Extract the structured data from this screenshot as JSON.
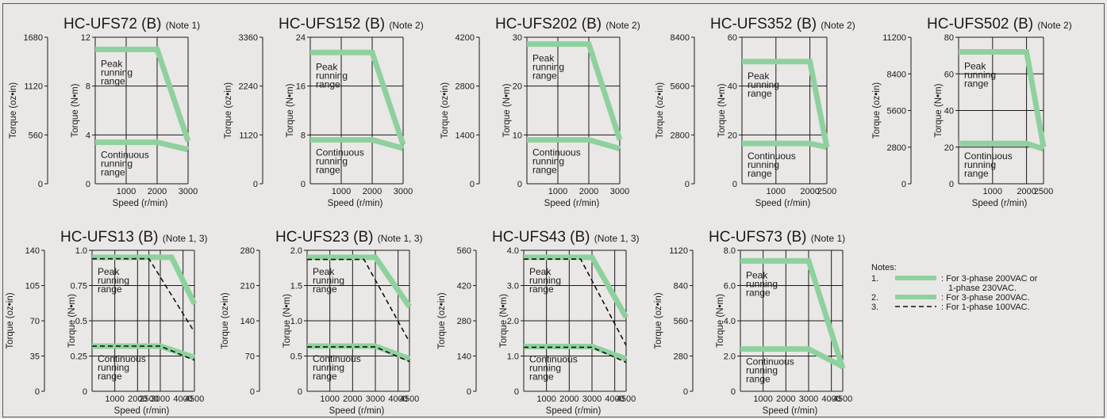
{
  "colors": {
    "band": "#8fd19e",
    "dash": "#111111",
    "grid": "#1a1a1a",
    "bg": "#eae8e6"
  },
  "chart_data": [
    {
      "type": "line",
      "title": "HC-UFS72 (B)",
      "note": "(Note 1)",
      "xlabel": "Speed (r/min)",
      "ylabel": "Torque (N•m)",
      "y2label": "Torque (oz•in)",
      "xlim": [
        0,
        3000
      ],
      "ylim": [
        0,
        12
      ],
      "xticks": [
        "1000",
        "2000",
        "3000"
      ],
      "yticks": [
        "0",
        "4",
        "8",
        "12"
      ],
      "y2ticks": [
        "0",
        "560",
        "1120",
        "1680"
      ],
      "peak_label": [
        "Peak",
        "running",
        "range"
      ],
      "cont_label": [
        "Continuous",
        "running",
        "range"
      ],
      "series": [
        {
          "style": "band",
          "x": [
            0,
            2000,
            3000
          ],
          "y": [
            11.0,
            11.0,
            3.5
          ]
        },
        {
          "style": "band",
          "x": [
            0,
            2000,
            3000
          ],
          "y": [
            3.4,
            3.4,
            2.8
          ]
        }
      ]
    },
    {
      "type": "line",
      "title": "HC-UFS152 (B)",
      "note": "(Note 2)",
      "xlabel": "",
      "ylabel": "Torque (N•m)",
      "y2label": "Torque (oz•in)",
      "xlim": [
        0,
        3000
      ],
      "ylim": [
        0,
        24
      ],
      "xticks": [
        "1000",
        "2000",
        "3000"
      ],
      "yticks": [
        "0",
        "8",
        "16",
        "24"
      ],
      "y2ticks": [
        "0",
        "1120",
        "2240",
        "3360"
      ],
      "peak_label": [
        "Peak",
        "running",
        "range"
      ],
      "cont_label": [
        "Continuous",
        "running",
        "range"
      ],
      "series": [
        {
          "style": "band",
          "x": [
            0,
            2000,
            3000
          ],
          "y": [
            21.5,
            21.5,
            6.4
          ]
        },
        {
          "style": "band",
          "x": [
            0,
            2000,
            3000
          ],
          "y": [
            7.2,
            7.2,
            5.8
          ]
        }
      ]
    },
    {
      "type": "line",
      "title": "HC-UFS202 (B)",
      "note": "(Note 2)",
      "xlabel": "",
      "ylabel": "Torque (N•m)",
      "y2label": "Torque (oz•in)",
      "xlim": [
        0,
        3000
      ],
      "ylim": [
        0,
        30
      ],
      "xticks": [
        "1000",
        "2000",
        "3000"
      ],
      "yticks": [
        "0",
        "10",
        "20",
        "30"
      ],
      "y2ticks": [
        "0",
        "1400",
        "2800",
        "4200"
      ],
      "peak_label": [
        "Peak",
        "running",
        "range"
      ],
      "cont_label": [
        "Continuous",
        "running",
        "range"
      ],
      "series": [
        {
          "style": "band",
          "x": [
            0,
            2000,
            3000
          ],
          "y": [
            28.6,
            28.6,
            9.0
          ]
        },
        {
          "style": "band",
          "x": [
            0,
            2000,
            3000
          ],
          "y": [
            9.0,
            9.0,
            7.2
          ]
        }
      ]
    },
    {
      "type": "line",
      "title": "HC-UFS352 (B)",
      "note": "(Note 2)",
      "xlabel": "",
      "ylabel": "Torque (N•m)",
      "y2label": "Torque (oz•in)",
      "xlim": [
        0,
        2500
      ],
      "ylim": [
        0,
        60
      ],
      "xticks": [
        "1000",
        "2000",
        "2500"
      ],
      "yticks": [
        "0",
        "20",
        "40",
        "60"
      ],
      "y2ticks": [
        "0",
        "2800",
        "5600",
        "8400"
      ],
      "peak_label": [
        "Peak",
        "running",
        "range"
      ],
      "cont_label": [
        "Continuous",
        "running",
        "range"
      ],
      "series": [
        {
          "style": "band",
          "x": [
            0,
            2000,
            2500
          ],
          "y": [
            50,
            50,
            15
          ]
        },
        {
          "style": "band",
          "x": [
            0,
            2000,
            2500
          ],
          "y": [
            16.5,
            16.5,
            15.0
          ]
        }
      ]
    },
    {
      "type": "line",
      "title": "HC-UFS502 (B)",
      "note": "(Note 2)",
      "xlabel": "",
      "ylabel": "Torque (N•m)",
      "y2label": "Torque (oz•in)",
      "xlim": [
        0,
        2500
      ],
      "ylim": [
        0,
        80
      ],
      "xticks": [
        "1000",
        "2000",
        "2500"
      ],
      "yticks": [
        "0",
        "20",
        "40",
        "60",
        "80"
      ],
      "y2ticks": [
        "0",
        "2800",
        "5600",
        "8400",
        "11200"
      ],
      "peak_label": [
        "Peak",
        "running",
        "range"
      ],
      "cont_label": [
        "Continuous",
        "running",
        "range"
      ],
      "series": [
        {
          "style": "band",
          "x": [
            0,
            2000,
            2500
          ],
          "y": [
            72,
            72,
            20
          ]
        },
        {
          "style": "band",
          "x": [
            0,
            2000,
            2500
          ],
          "y": [
            22,
            22,
            19
          ]
        }
      ]
    },
    {
      "type": "line",
      "title": "HC-UFS13 (B)",
      "note": "(Note 1, 3)",
      "xlabel": "Speed (r/min)",
      "ylabel": "Torque (N•m)",
      "y2label": "Torque (oz•in)",
      "xlim": [
        0,
        4500
      ],
      "ylim": [
        0,
        1.0
      ],
      "xticks": [
        "1000",
        "2000",
        "2500",
        "3000",
        "4000",
        "4500"
      ],
      "xtickvals": [
        1000,
        2000,
        2500,
        3000,
        4000,
        4500
      ],
      "yticks": [
        "0",
        "0.25",
        "0.5",
        "0.75",
        "1.0"
      ],
      "y2ticks": [
        "0",
        "35",
        "70",
        "105",
        "140"
      ],
      "peak_label": [
        "Peak",
        "running",
        "range"
      ],
      "cont_label": [
        "Continuous",
        "running",
        "range"
      ],
      "series": [
        {
          "style": "band",
          "x": [
            0,
            3000,
            3500,
            4500
          ],
          "y": [
            0.95,
            0.95,
            0.95,
            0.62
          ]
        },
        {
          "style": "band",
          "x": [
            0,
            3000,
            4500
          ],
          "y": [
            0.32,
            0.32,
            0.24
          ]
        },
        {
          "style": "dash",
          "x": [
            0,
            2500,
            4500
          ],
          "y": [
            0.94,
            0.94,
            0.42
          ]
        },
        {
          "style": "dash",
          "x": [
            0,
            3000,
            4500
          ],
          "y": [
            0.32,
            0.32,
            0.22
          ]
        }
      ]
    },
    {
      "type": "line",
      "title": "HC-UFS23 (B)",
      "note": "(Note 1, 3)",
      "xlabel": "Speed (r/min)",
      "ylabel": "Torque (N•m)",
      "y2label": "Torque (oz•in)",
      "xlim": [
        0,
        4500
      ],
      "ylim": [
        0,
        2.0
      ],
      "xticks": [
        "1000",
        "2000",
        "3000",
        "4000",
        "4500"
      ],
      "xtickvals": [
        1000,
        2000,
        3000,
        4000,
        4500
      ],
      "yticks": [
        "0",
        "0.5",
        "1.0",
        "1.5",
        "2.0"
      ],
      "y2ticks": [
        "0",
        "70",
        "140",
        "210",
        "280"
      ],
      "peak_label": [
        "Peak",
        "running",
        "range"
      ],
      "cont_label": [
        "Continuous",
        "running",
        "range"
      ],
      "series": [
        {
          "style": "band",
          "x": [
            0,
            3000,
            4500
          ],
          "y": [
            1.9,
            1.9,
            1.2
          ]
        },
        {
          "style": "band",
          "x": [
            0,
            3000,
            4500
          ],
          "y": [
            0.64,
            0.64,
            0.46
          ]
        },
        {
          "style": "dash",
          "x": [
            0,
            2500,
            4500
          ],
          "y": [
            1.87,
            1.87,
            0.7
          ]
        },
        {
          "style": "dash",
          "x": [
            0,
            3000,
            4500
          ],
          "y": [
            0.63,
            0.63,
            0.42
          ]
        }
      ]
    },
    {
      "type": "line",
      "title": "HC-UFS43 (B)",
      "note": "(Note 1, 3)",
      "xlabel": "Speed (r/min)",
      "ylabel": "Torque (N•m)",
      "y2label": "Torque (oz•in)",
      "xlim": [
        0,
        4500
      ],
      "ylim": [
        0,
        4.0
      ],
      "xticks": [
        "1000",
        "2000",
        "3000",
        "4000",
        "4500"
      ],
      "xtickvals": [
        1000,
        2000,
        3000,
        4000,
        4500
      ],
      "yticks": [
        "0",
        "1.0",
        "2.0",
        "3.0",
        "4.0"
      ],
      "y2ticks": [
        "0",
        "140",
        "280",
        "420",
        "560"
      ],
      "peak_label": [
        "Peak",
        "running",
        "range"
      ],
      "cont_label": [
        "Continuous",
        "running",
        "range"
      ],
      "series": [
        {
          "style": "band",
          "x": [
            0,
            3000,
            4500
          ],
          "y": [
            3.8,
            3.8,
            2.1
          ]
        },
        {
          "style": "band",
          "x": [
            0,
            3000,
            4500
          ],
          "y": [
            1.27,
            1.27,
            0.92
          ]
        },
        {
          "style": "dash",
          "x": [
            0,
            2500,
            4500
          ],
          "y": [
            3.75,
            3.75,
            1.3
          ]
        },
        {
          "style": "dash",
          "x": [
            0,
            3000,
            4500
          ],
          "y": [
            1.25,
            1.25,
            0.82
          ]
        }
      ]
    },
    {
      "type": "line",
      "title": "HC-UFS73 (B)",
      "note": "(Note 1)",
      "xlabel": "Speed (r/min)",
      "ylabel": "Torque (N•m)",
      "y2label": "Torque (oz•in)",
      "xlim": [
        0,
        4500
      ],
      "ylim": [
        0,
        8.0
      ],
      "xticks": [
        "1000",
        "2000",
        "3000",
        "4000",
        "4500"
      ],
      "xtickvals": [
        1000,
        2000,
        3000,
        4000,
        4500
      ],
      "yticks": [
        "0",
        "2.0",
        "4.0",
        "6.0",
        "8.0"
      ],
      "y2ticks": [
        "0",
        "280",
        "560",
        "840",
        "1120"
      ],
      "peak_label": [
        "Peak",
        "running",
        "range"
      ],
      "cont_label": [
        "Continuous",
        "running",
        "range"
      ],
      "series": [
        {
          "style": "band",
          "x": [
            0,
            3000,
            4500
          ],
          "y": [
            7.4,
            7.4,
            1.3
          ]
        },
        {
          "style": "band",
          "x": [
            0,
            3000,
            4500
          ],
          "y": [
            2.4,
            2.4,
            1.4
          ]
        }
      ]
    }
  ],
  "legend": {
    "heading": "Notes:",
    "items": [
      {
        "num": "1.",
        "style": "band",
        "text": [
          ": For 3-phase 200VAC or",
          "1-phase 230VAC."
        ]
      },
      {
        "num": "2.",
        "style": "band",
        "text": [
          ": For 3-phase 200VAC."
        ]
      },
      {
        "num": "3.",
        "style": "dash",
        "text": [
          ": For 1-phase 100VAC."
        ]
      }
    ]
  }
}
